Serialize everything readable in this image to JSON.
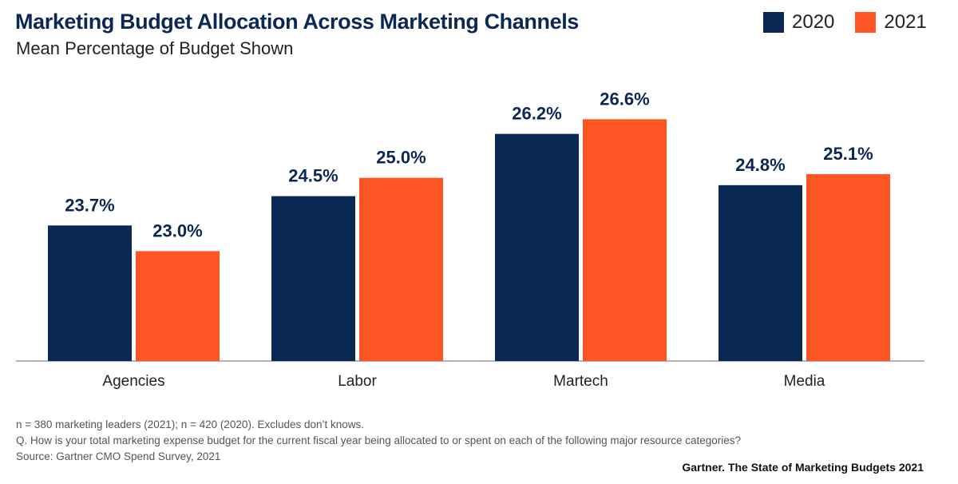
{
  "header": {
    "title": "Marketing Budget Allocation Across Marketing Channels",
    "subtitle": "Mean Percentage of Budget Shown"
  },
  "legend": [
    {
      "label": "2020",
      "color": "#0b2855"
    },
    {
      "label": "2021",
      "color": "#fd5524"
    }
  ],
  "chart_data": {
    "type": "bar",
    "title": "Marketing Budget Allocation Across Marketing Channels",
    "subtitle": "Mean Percentage of Budget Shown",
    "categories": [
      "Agencies",
      "Labor",
      "Martech",
      "Media"
    ],
    "series": [
      {
        "name": "2020",
        "color": "#0b2855",
        "values": [
          23.7,
          24.5,
          26.2,
          24.8
        ],
        "labels": [
          "23.7%",
          "24.5%",
          "26.2%",
          "24.8%"
        ]
      },
      {
        "name": "2021",
        "color": "#fd5524",
        "values": [
          23.0,
          25.0,
          26.6,
          25.1
        ],
        "labels": [
          "23.0%",
          "25.0%",
          "26.6%",
          "25.1%"
        ]
      }
    ],
    "xlabel": "",
    "ylabel": "",
    "ylim": [
      20,
      27.5
    ],
    "grid": false,
    "legend_position": "top-right"
  },
  "footnotes": {
    "sample": "n = 380 marketing leaders (2021); n = 420 (2020). Excludes don’t knows.",
    "question": "Q. How is your total marketing expense budget for the current fiscal year being allocated to or spent on each of the following major resource categories?",
    "source": "Source: Gartner CMO Spend Survey, 2021"
  },
  "brand": "Gartner.  The State of Marketing Budgets 2021"
}
